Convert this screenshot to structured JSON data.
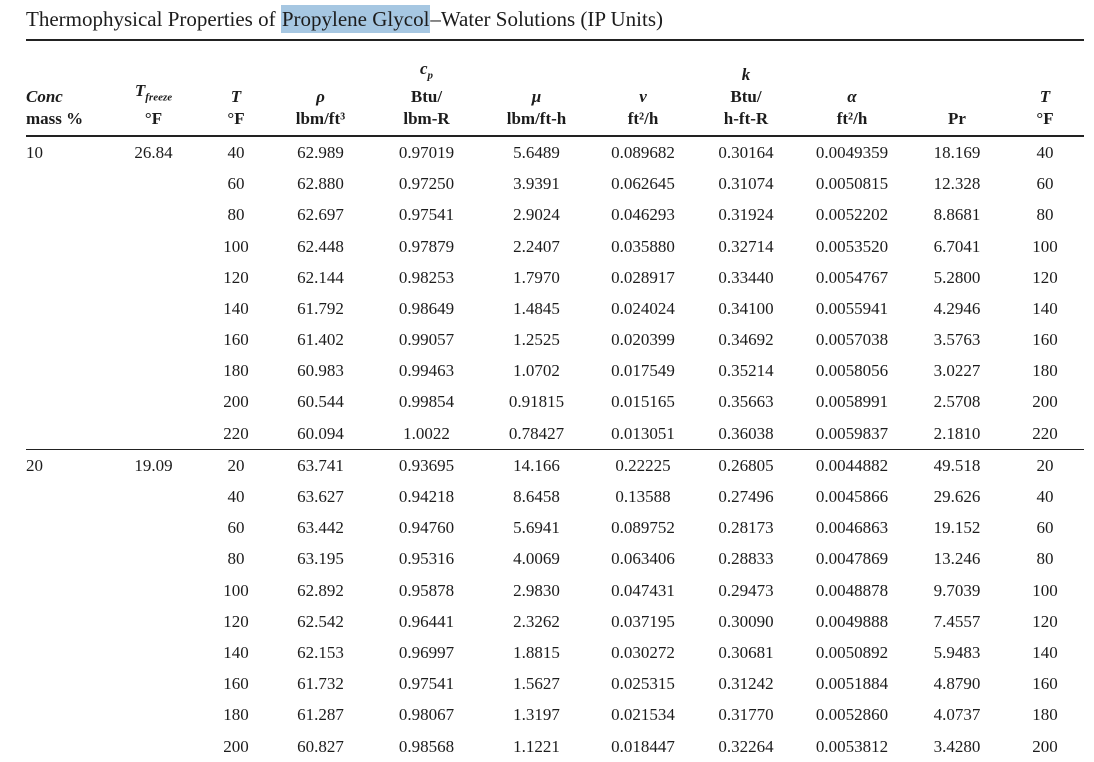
{
  "title": {
    "prefix": "Thermophysical Properties of ",
    "highlighted": "Propylene Glycol",
    "suffix": "–Water Solutions (IP Units)"
  },
  "colors": {
    "selection_highlight": "#a6c7e2",
    "text": "#1c1c1c",
    "rule": "#222222"
  },
  "table": {
    "headers": [
      {
        "key": "conc",
        "sym": "Conc",
        "unit": "mass %"
      },
      {
        "key": "t-freeze",
        "sym": "T",
        "sub": "freeze",
        "unit": "°F"
      },
      {
        "key": "t",
        "sym": "T",
        "unit": "°F"
      },
      {
        "key": "rho",
        "sym": "ρ",
        "unit": "lbm/ft³"
      },
      {
        "key": "cp",
        "sym": "c",
        "sub": "p",
        "unit_top": "Btu/",
        "unit": "lbm-R"
      },
      {
        "key": "mu",
        "sym": "μ",
        "unit": "lbm/ft-h"
      },
      {
        "key": "nu",
        "sym": "ν",
        "unit": "ft²/h"
      },
      {
        "key": "k",
        "sym": "k",
        "unit_top": "Btu/",
        "unit": "h-ft-R"
      },
      {
        "key": "alpha",
        "sym": "α",
        "unit": "ft²/h"
      },
      {
        "key": "pr",
        "sym": "",
        "unit": "Pr"
      },
      {
        "key": "t-right",
        "sym": "T",
        "unit": "°F"
      }
    ],
    "sections": [
      {
        "conc": "10",
        "t_freeze": "26.84",
        "rows": [
          [
            "40",
            "62.989",
            "0.97019",
            "5.6489",
            "0.089682",
            "0.30164",
            "0.0049359",
            "18.169",
            "40"
          ],
          [
            "60",
            "62.880",
            "0.97250",
            "3.9391",
            "0.062645",
            "0.31074",
            "0.0050815",
            "12.328",
            "60"
          ],
          [
            "80",
            "62.697",
            "0.97541",
            "2.9024",
            "0.046293",
            "0.31924",
            "0.0052202",
            "8.8681",
            "80"
          ],
          [
            "100",
            "62.448",
            "0.97879",
            "2.2407",
            "0.035880",
            "0.32714",
            "0.0053520",
            "6.7041",
            "100"
          ],
          [
            "120",
            "62.144",
            "0.98253",
            "1.7970",
            "0.028917",
            "0.33440",
            "0.0054767",
            "5.2800",
            "120"
          ],
          [
            "140",
            "61.792",
            "0.98649",
            "1.4845",
            "0.024024",
            "0.34100",
            "0.0055941",
            "4.2946",
            "140"
          ],
          [
            "160",
            "61.402",
            "0.99057",
            "1.2525",
            "0.020399",
            "0.34692",
            "0.0057038",
            "3.5763",
            "160"
          ],
          [
            "180",
            "60.983",
            "0.99463",
            "1.0702",
            "0.017549",
            "0.35214",
            "0.0058056",
            "3.0227",
            "180"
          ],
          [
            "200",
            "60.544",
            "0.99854",
            "0.91815",
            "0.015165",
            "0.35663",
            "0.0058991",
            "2.5708",
            "200"
          ],
          [
            "220",
            "60.094",
            "1.0022",
            "0.78427",
            "0.013051",
            "0.36038",
            "0.0059837",
            "2.1810",
            "220"
          ]
        ]
      },
      {
        "conc": "20",
        "t_freeze": "19.09",
        "rows": [
          [
            "20",
            "63.741",
            "0.93695",
            "14.166",
            "0.22225",
            "0.26805",
            "0.0044882",
            "49.518",
            "20"
          ],
          [
            "40",
            "63.627",
            "0.94218",
            "8.6458",
            "0.13588",
            "0.27496",
            "0.0045866",
            "29.626",
            "40"
          ],
          [
            "60",
            "63.442",
            "0.94760",
            "5.6941",
            "0.089752",
            "0.28173",
            "0.0046863",
            "19.152",
            "60"
          ],
          [
            "80",
            "63.195",
            "0.95316",
            "4.0069",
            "0.063406",
            "0.28833",
            "0.0047869",
            "13.246",
            "80"
          ],
          [
            "100",
            "62.892",
            "0.95878",
            "2.9830",
            "0.047431",
            "0.29473",
            "0.0048878",
            "9.7039",
            "100"
          ],
          [
            "120",
            "62.542",
            "0.96441",
            "2.3262",
            "0.037195",
            "0.30090",
            "0.0049888",
            "7.4557",
            "120"
          ],
          [
            "140",
            "62.153",
            "0.96997",
            "1.8815",
            "0.030272",
            "0.30681",
            "0.0050892",
            "5.9483",
            "140"
          ],
          [
            "160",
            "61.732",
            "0.97541",
            "1.5627",
            "0.025315",
            "0.31242",
            "0.0051884",
            "4.8790",
            "160"
          ],
          [
            "180",
            "61.287",
            "0.98067",
            "1.3197",
            "0.021534",
            "0.31770",
            "0.0052860",
            "4.0737",
            "180"
          ],
          [
            "200",
            "60.827",
            "0.98568",
            "1.1221",
            "0.018447",
            "0.32264",
            "0.0053812",
            "3.4280",
            "200"
          ]
        ]
      }
    ]
  }
}
